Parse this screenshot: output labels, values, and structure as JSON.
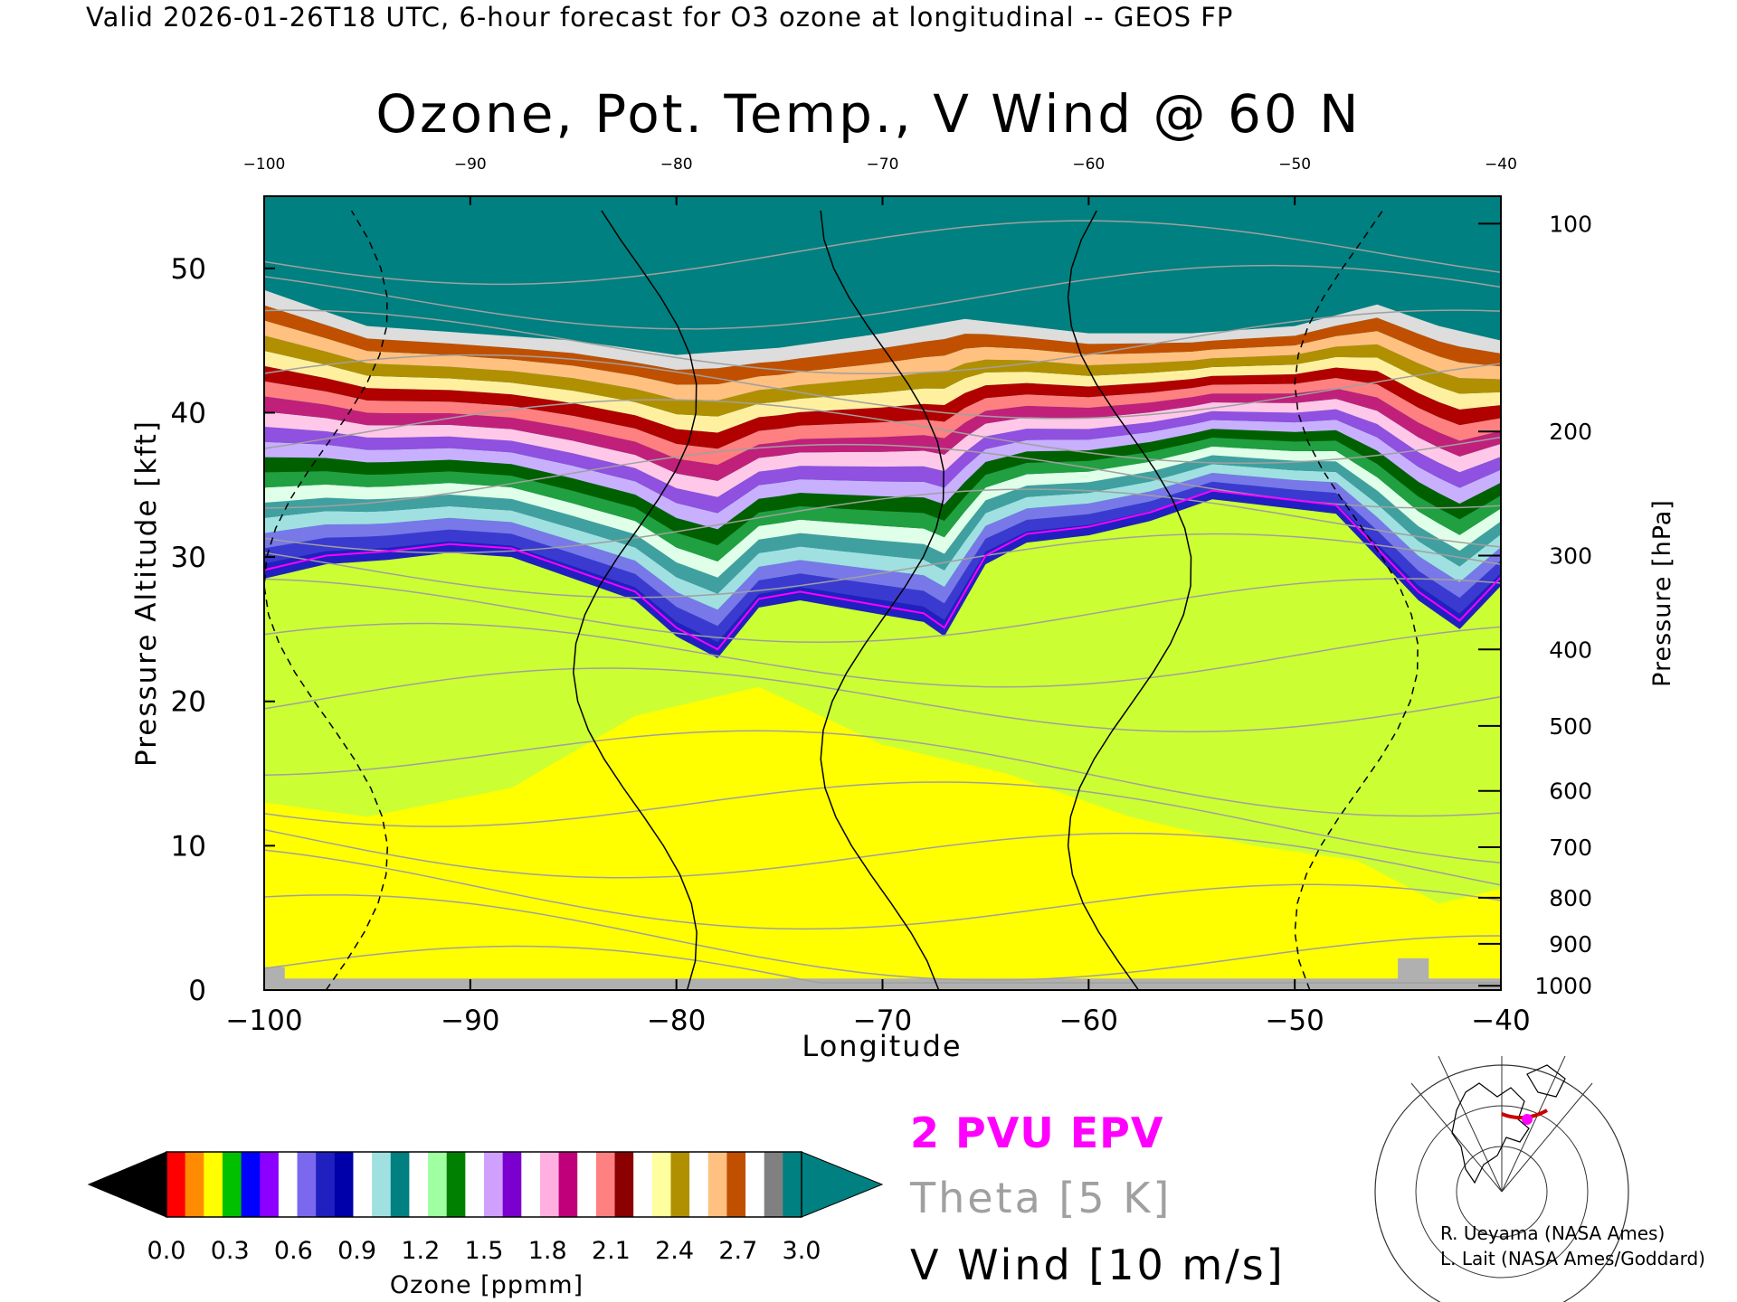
{
  "header": {
    "caption": "Valid 2026-01-26T18 UTC, 6-hour forecast for O3 ozone at longitudinal -- GEOS FP",
    "title": "Ozone, Pot. Temp., V Wind @ 60 N"
  },
  "chart_data": {
    "type": "heatmap",
    "title": "Ozone, Pot. Temp., V Wind @ 60 N",
    "xlabel": "Longitude",
    "ylabel": "Pressure Altitude [kft]",
    "y2label": "Pressure [hPa]",
    "xlim": [
      -100,
      -40
    ],
    "ylim": [
      0,
      55
    ],
    "x_ticks": [
      "-100",
      "-90",
      "-80",
      "-70",
      "-60",
      "-50",
      "-40"
    ],
    "top_x_ticks": [
      "-100",
      "-90",
      "-80",
      "-70",
      "-60",
      "-50",
      "-40"
    ],
    "y_ticks": [
      "0",
      "10",
      "20",
      "30",
      "40",
      "50"
    ],
    "pressure_ticks": [
      "100",
      "200",
      "300",
      "400",
      "500",
      "600",
      "700",
      "800",
      "900",
      "1000"
    ],
    "pressure_tick_alt_kft": [
      53.1,
      38.7,
      30.1,
      23.6,
      18.3,
      13.8,
      9.9,
      6.4,
      3.2,
      0.3
    ],
    "tropopause_kft": {
      "lon": [
        -100,
        -97,
        -94,
        -91,
        -88,
        -85,
        -82,
        -80,
        -78,
        -76,
        -74,
        -72,
        -70,
        -68,
        -67,
        -65,
        -63,
        -60,
        -57,
        -54,
        -51,
        -48,
        -46,
        -44,
        -42,
        -40
      ],
      "alt": [
        28.5,
        29.5,
        29.8,
        30.3,
        30.0,
        28.5,
        27.0,
        24.5,
        23.0,
        26.5,
        27.0,
        26.5,
        26.0,
        25.5,
        24.5,
        29.5,
        31.0,
        31.5,
        32.5,
        34.0,
        33.5,
        33.0,
        30.0,
        27.0,
        25.0,
        28.0
      ]
    },
    "ozone_top_kft": {
      "lon": [
        -100,
        -95,
        -90,
        -85,
        -80,
        -75,
        -70,
        -66,
        -60,
        -55,
        -50,
        -46,
        -43,
        -40
      ],
      "alt": [
        48.5,
        46.0,
        45.5,
        45.0,
        44.0,
        44.5,
        45.5,
        46.5,
        45.5,
        45.5,
        46.0,
        47.5,
        46.0,
        45.0
      ]
    },
    "theta_levels_K": [
      "260",
      "270",
      "280",
      "290",
      "300",
      "310",
      "320",
      "330",
      "340",
      "350",
      "360",
      "370",
      "380",
      "390",
      "400",
      "410",
      "420"
    ],
    "wind_contour_labels": [
      "-10",
      "0",
      "10",
      "20"
    ],
    "colorbar": {
      "label": "Ozone [ppmm]",
      "ticks": [
        "0.0",
        "0.3",
        "0.6",
        "0.9",
        "1.2",
        "1.5",
        "1.8",
        "2.1",
        "2.4",
        "2.7",
        "3.0"
      ],
      "range": [
        0.0,
        3.0
      ],
      "colors": [
        "#ff0000",
        "#ff8c00",
        "#ffff00",
        "#00c000",
        "#0000ff",
        "#8b00ff",
        "#ffffff",
        "#7b68ee",
        "#2020c0",
        "#0000aa",
        "#ffffff",
        "#a0e0e0",
        "#008080",
        "#ffffff",
        "#a0ffa0",
        "#008000",
        "#ffffff",
        "#d0a0ff",
        "#7b00d0",
        "#ffffff",
        "#ffb0e0",
        "#c0007a",
        "#ffffff",
        "#ff8080",
        "#8b0000",
        "#ffffff",
        "#ffffa0",
        "#b09000",
        "#ffffff",
        "#ffc080",
        "#c05000",
        "#ffffff",
        "#808080",
        "#008080"
      ]
    },
    "colors": {
      "tropo": "#ccff33",
      "troposphere_low": "#ffff00",
      "ozone_max": "#008080",
      "epv": "#ff00ff",
      "theta": "#a0a0a0",
      "terrain": "#b0b0b0"
    },
    "legend": {
      "epv": "2 PVU EPV",
      "theta": "Theta [5 K]",
      "wind": "V Wind [10 m/s]"
    }
  },
  "credits": {
    "line1": "R. Ueyama (NASA Ames)",
    "line2": "L. Lait (NASA Ames/Goddard)"
  },
  "inset_map": {
    "icon": "polar-map-icon"
  }
}
